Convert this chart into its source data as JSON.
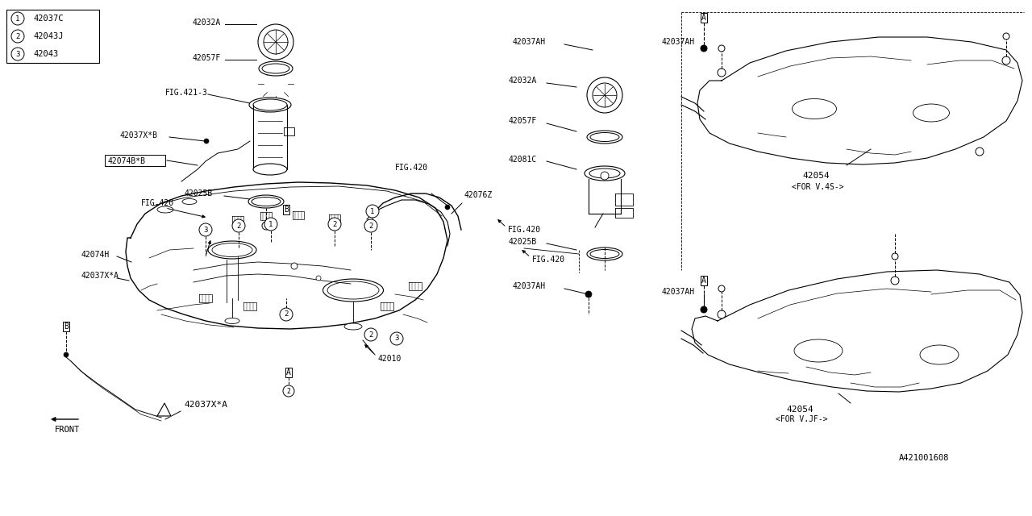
{
  "bg_color": "#ffffff",
  "line_color": "#000000",
  "legend": [
    {
      "num": "1",
      "code": "42037C"
    },
    {
      "num": "2",
      "code": "42043J"
    },
    {
      "num": "3",
      "code": "42043"
    }
  ],
  "part_ref": "A421001608"
}
